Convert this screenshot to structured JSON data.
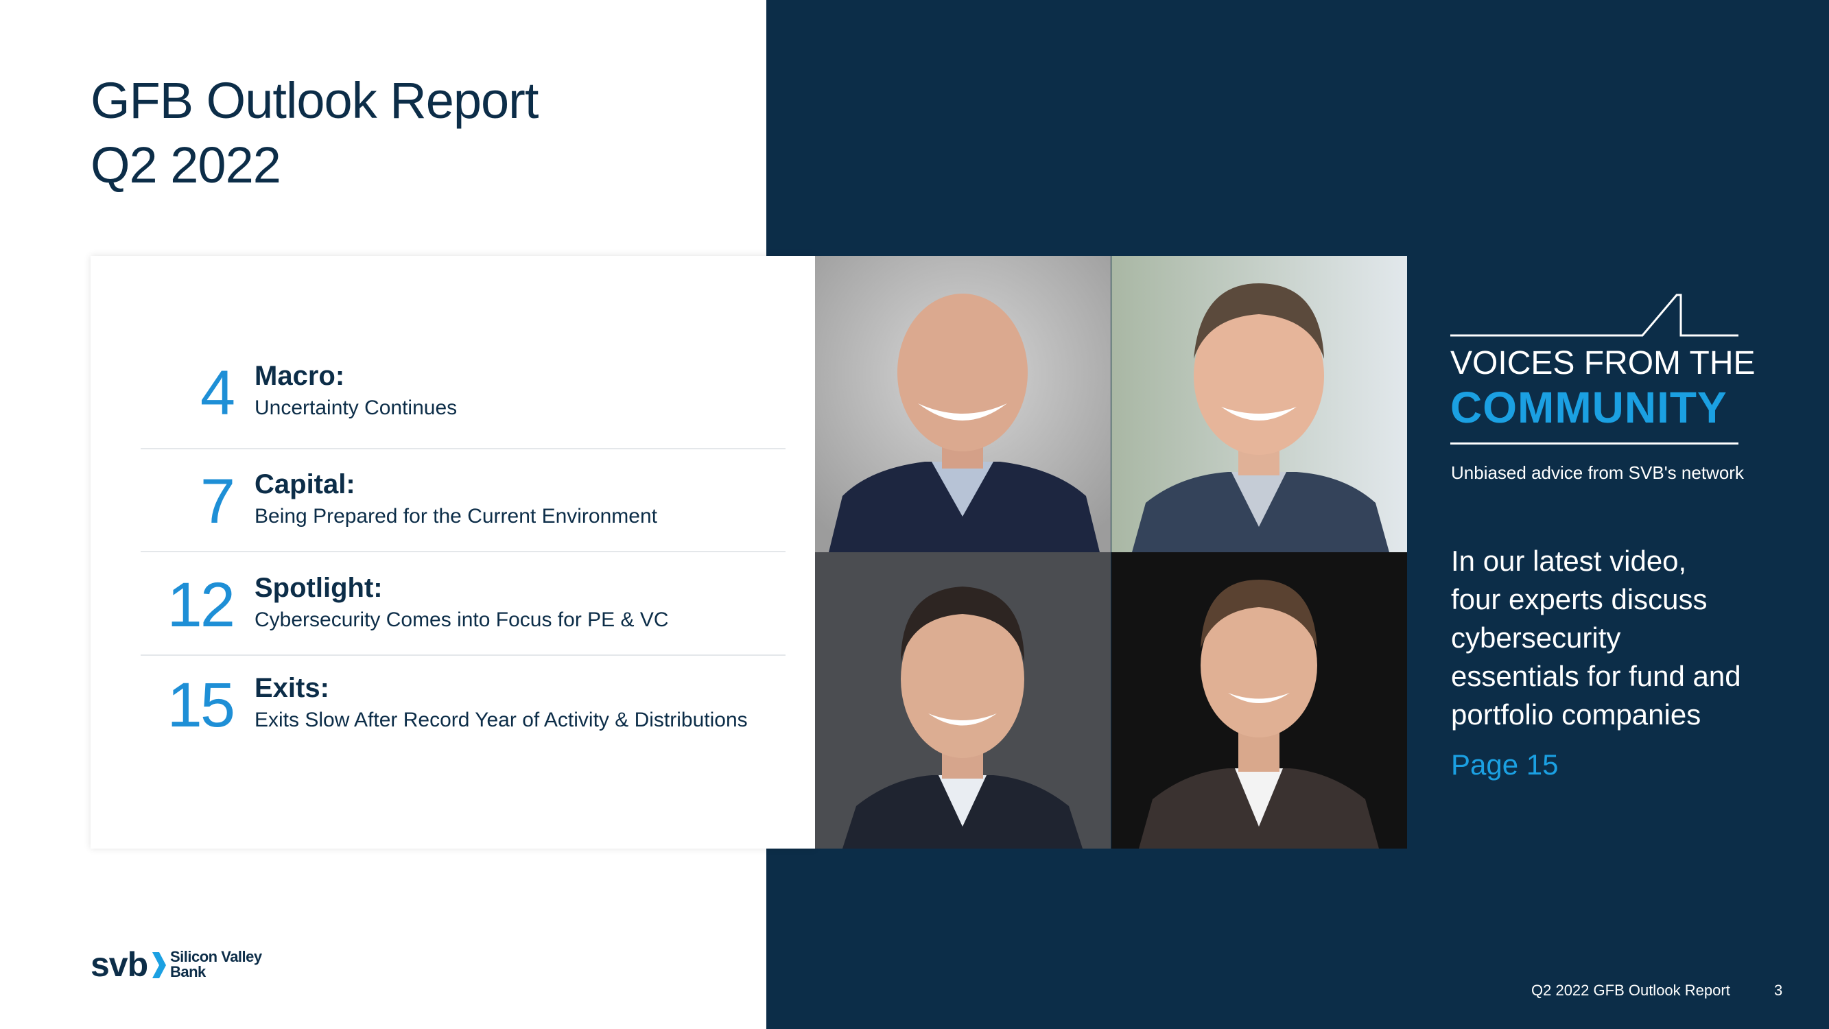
{
  "report": {
    "title_line1": "GFB Outlook Report",
    "title_line2": "Q2 2022"
  },
  "toc": [
    {
      "number": "4",
      "heading": "Macro:",
      "subtitle": "Uncertainty Continues"
    },
    {
      "number": "7",
      "heading": "Capital:",
      "subtitle": "Being Prepared for the Current Environment"
    },
    {
      "number": "12",
      "heading": "Spotlight:",
      "subtitle": "Cybersecurity Comes into Focus for PE & VC"
    },
    {
      "number": "15",
      "heading": "Exits:",
      "subtitle": "Exits Slow After Record Year of Activity & Distributions"
    }
  ],
  "feature": {
    "voices_title": "VOICES FROM THE",
    "community": "COMMUNITY",
    "tagline": "Unbiased advice from SVB's network",
    "blurb_lines": [
      "In our latest video,",
      "four experts discuss",
      "cybersecurity",
      "essentials for fund and",
      "portfolio companies"
    ],
    "page_link": "Page 15"
  },
  "brand": {
    "wordmark": "svb",
    "name_line1": "Silicon Valley",
    "name_line2": "Bank"
  },
  "footer": {
    "report_name": "Q2 2022 GFB Outlook Report",
    "page_number": "3"
  },
  "colors": {
    "navy": "#0c2d48",
    "accent_blue": "#1ba0e2",
    "number_blue": "#1e8fd6",
    "white": "#ffffff"
  },
  "icons": {
    "brand_chevron": "chevron-right-icon",
    "voices_logo": "mountain-line-icon"
  }
}
